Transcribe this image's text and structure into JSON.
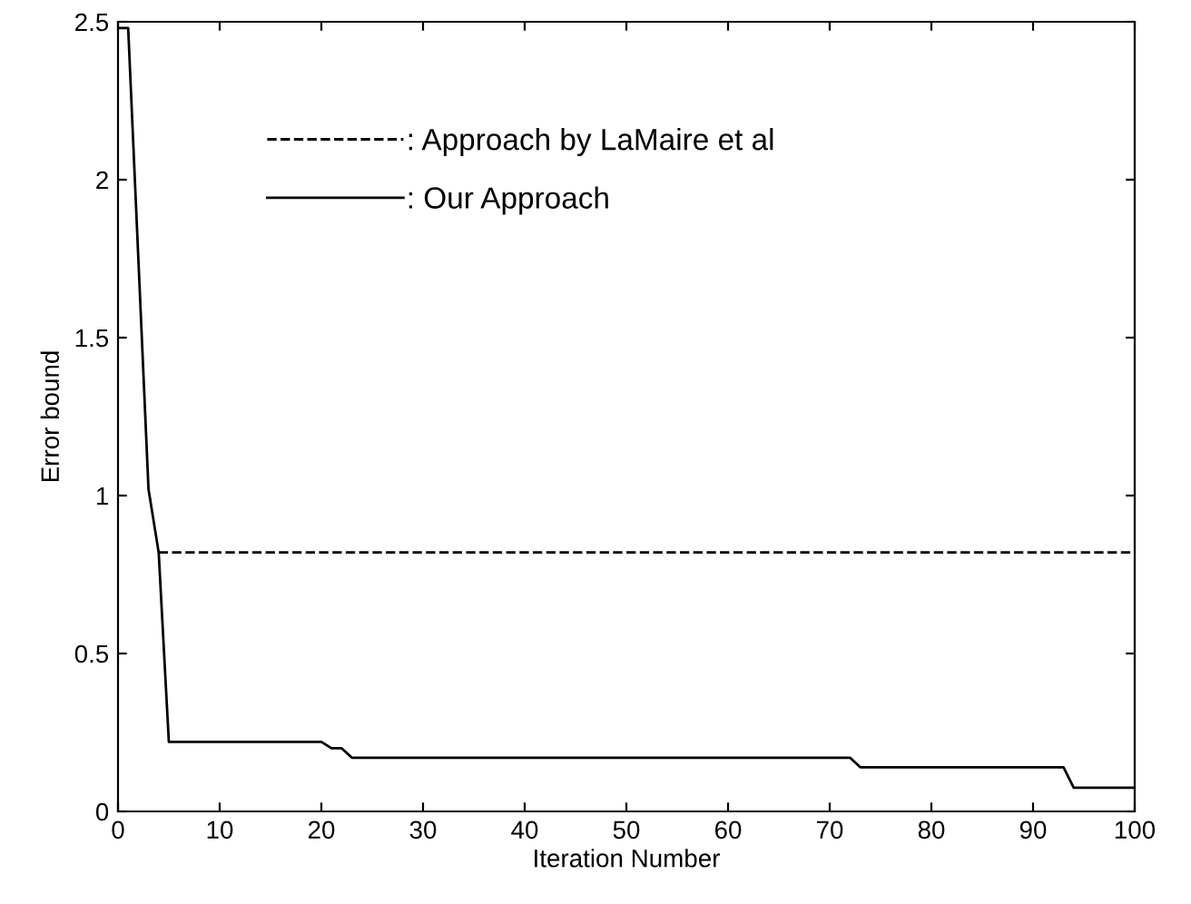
{
  "chart_data": {
    "type": "line",
    "xlabel": "Iteration Number",
    "ylabel": "Error bound",
    "xlim": [
      0,
      100
    ],
    "xticks": [
      0,
      10,
      20,
      30,
      40,
      50,
      60,
      70,
      80,
      90,
      100
    ],
    "ylim": [
      0,
      2.5
    ],
    "yticks": [
      0,
      0.5,
      1,
      1.5,
      2,
      2.5
    ],
    "legend": "top left",
    "grid": false,
    "series": [
      {
        "name": ": Approach by LaMaire et al",
        "color": "#000000",
        "line_style": "dashed",
        "x": [
          4,
          100
        ],
        "values": [
          0.82,
          0.82
        ]
      },
      {
        "name": ": Our Approach",
        "color": "#000000",
        "line_style": "solid",
        "x": [
          0,
          1,
          2,
          3,
          4,
          5,
          20,
          21,
          22,
          23,
          72,
          73,
          93,
          94,
          100
        ],
        "values": [
          2.48,
          2.48,
          1.75,
          1.02,
          0.82,
          0.22,
          0.22,
          0.2,
          0.2,
          0.17,
          0.17,
          0.14,
          0.14,
          0.075,
          0.075
        ]
      }
    ]
  }
}
